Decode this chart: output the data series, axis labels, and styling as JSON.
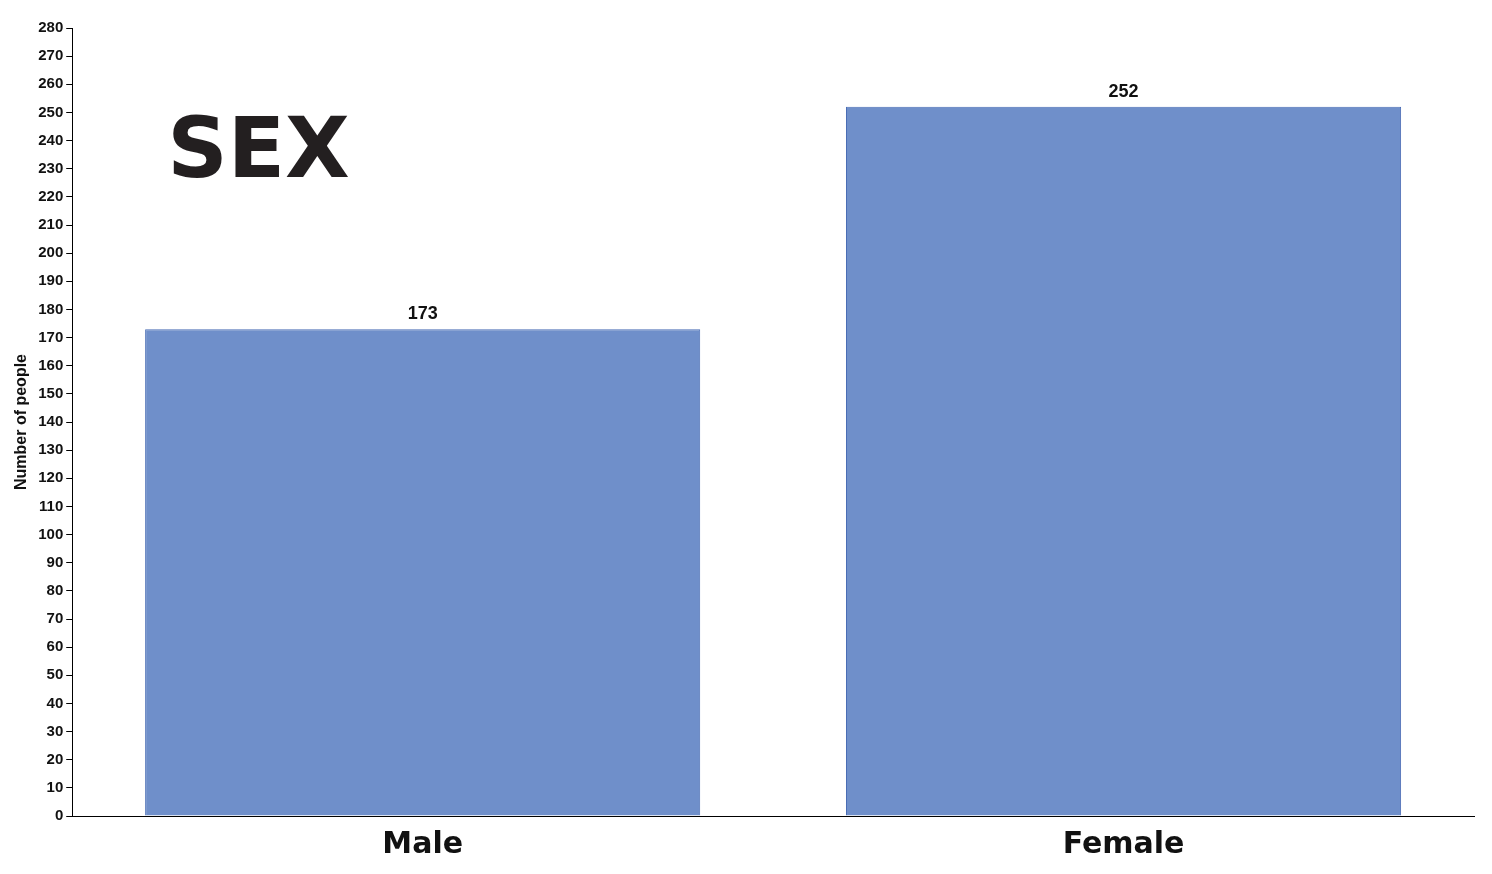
{
  "chart_data": {
    "type": "bar",
    "title": "SEX",
    "ylabel": "Number of people",
    "categories": [
      "Male",
      "Female"
    ],
    "values": [
      173,
      252
    ],
    "color": "#6f8fca",
    "ylim": [
      0,
      280
    ],
    "yticks": [
      0,
      10,
      20,
      30,
      40,
      50,
      60,
      70,
      80,
      90,
      100,
      110,
      120,
      130,
      140,
      150,
      160,
      170,
      180,
      190,
      200,
      210,
      220,
      230,
      240,
      250,
      260,
      270,
      280
    ],
    "grid": false,
    "legend": false,
    "data_labels": true
  }
}
